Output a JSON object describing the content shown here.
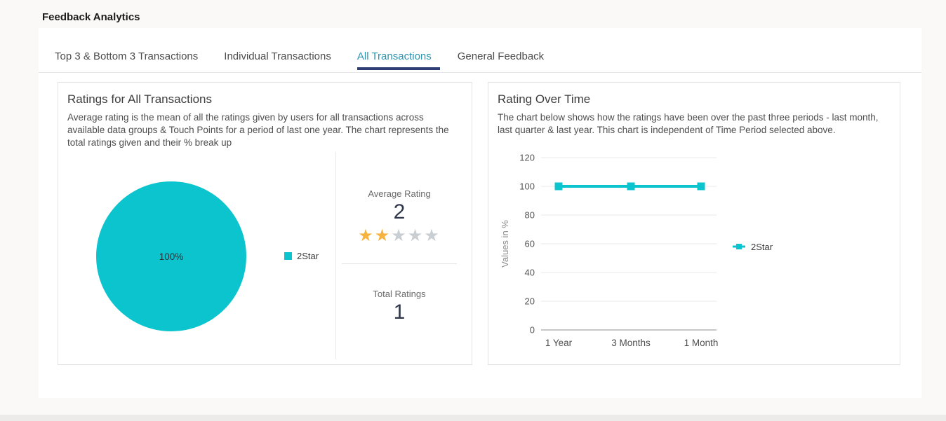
{
  "page": {
    "title": "Feedback Analytics"
  },
  "tabs": [
    {
      "label": "Top 3 & Bottom 3 Transactions",
      "active": false
    },
    {
      "label": "Individual Transactions",
      "active": false
    },
    {
      "label": "All Transactions",
      "active": true
    },
    {
      "label": "General Feedback",
      "active": false
    }
  ],
  "colors": {
    "accent_teal": "#0bc4cd",
    "active_tab_text": "#2b95af",
    "active_tab_underline": "#2c3e74",
    "star_filled": "#f6b33d",
    "star_empty": "#c9ced3",
    "grid_line": "#e8e8e8",
    "axis_line": "#8f8f8f"
  },
  "left_panel": {
    "title": "Ratings for All Transactions",
    "description": "Average rating is the mean of all the ratings given by users for all transactions across available data groups & Touch Points for a period of last one year. The chart represents the total ratings given and their % break up",
    "average_rating": {
      "label": "Average Rating",
      "value": "2",
      "stars_filled": 2,
      "stars_total": 5
    },
    "total_ratings": {
      "label": "Total Ratings",
      "value": "1"
    }
  },
  "right_panel": {
    "title": "Rating Over Time",
    "description": "The chart below shows how the ratings have been over the past three periods - last month, last quarter & last year. This chart is independent of Time Period selected above."
  },
  "chart_data": [
    {
      "type": "pie",
      "title": "Ratings for All Transactions",
      "slices": [
        {
          "label": "2Star",
          "value": 100,
          "display": "100%",
          "color": "#0bc4cd"
        }
      ],
      "legend": [
        "2Star"
      ],
      "legend_position": "right"
    },
    {
      "type": "line",
      "title": "Rating Over Time",
      "categories": [
        "1 Year",
        "3 Months",
        "1 Month"
      ],
      "series": [
        {
          "name": "2Star",
          "values": [
            100,
            100,
            100
          ],
          "color": "#0bc4cd"
        }
      ],
      "xlabel": "",
      "ylabel": "Values in %",
      "ylim": [
        0,
        120
      ],
      "yticks": [
        0,
        20,
        40,
        60,
        80,
        100,
        120
      ],
      "grid": true,
      "legend_position": "right",
      "marker": "square"
    }
  ]
}
